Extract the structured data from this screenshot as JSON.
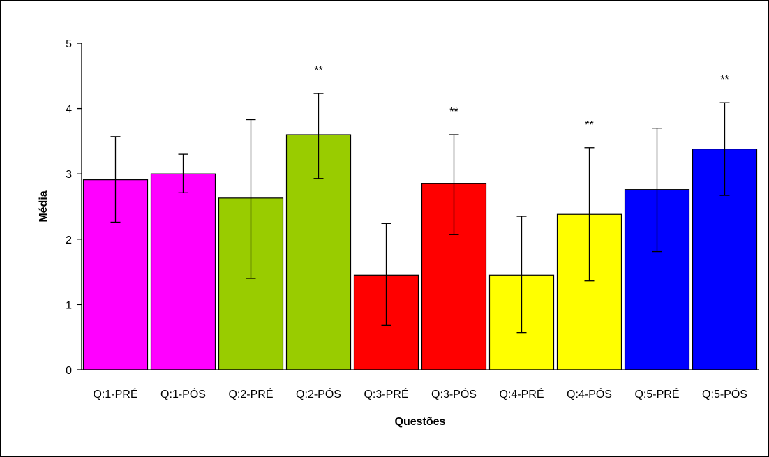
{
  "chart_data": {
    "type": "bar",
    "xlabel": "Questões",
    "ylabel": "Média",
    "ylim": [
      0,
      5
    ],
    "yticks": [
      0,
      1,
      2,
      3,
      4,
      5
    ],
    "grid": false,
    "legend": "none",
    "categories": [
      "Q:1-PRÉ",
      "Q:1-PÓS",
      "Q:2-PRÉ",
      "Q:2-PÓS",
      "Q:3-PRÉ",
      "Q:3-PÓS",
      "Q:4-PRÉ",
      "Q:4-PÓS",
      "Q:5-PRÉ",
      "Q:5-PÓS"
    ],
    "values": [
      2.91,
      3.0,
      2.63,
      3.6,
      1.45,
      2.85,
      1.45,
      2.38,
      2.76,
      3.38
    ],
    "error_low": [
      2.26,
      2.71,
      1.4,
      2.93,
      0.68,
      2.07,
      0.57,
      1.36,
      1.81,
      2.67
    ],
    "error_high": [
      3.57,
      3.3,
      3.83,
      4.23,
      2.24,
      3.6,
      2.35,
      3.4,
      3.7,
      4.09
    ],
    "colors": [
      "#ff00ff",
      "#ff00ff",
      "#99cc00",
      "#99cc00",
      "#ff0000",
      "#ff0000",
      "#ffff00",
      "#ffff00",
      "#0000ff",
      "#0000ff"
    ],
    "annotations": [
      "",
      "",
      "",
      "**",
      "",
      "**",
      "",
      "**",
      "",
      "**"
    ]
  }
}
